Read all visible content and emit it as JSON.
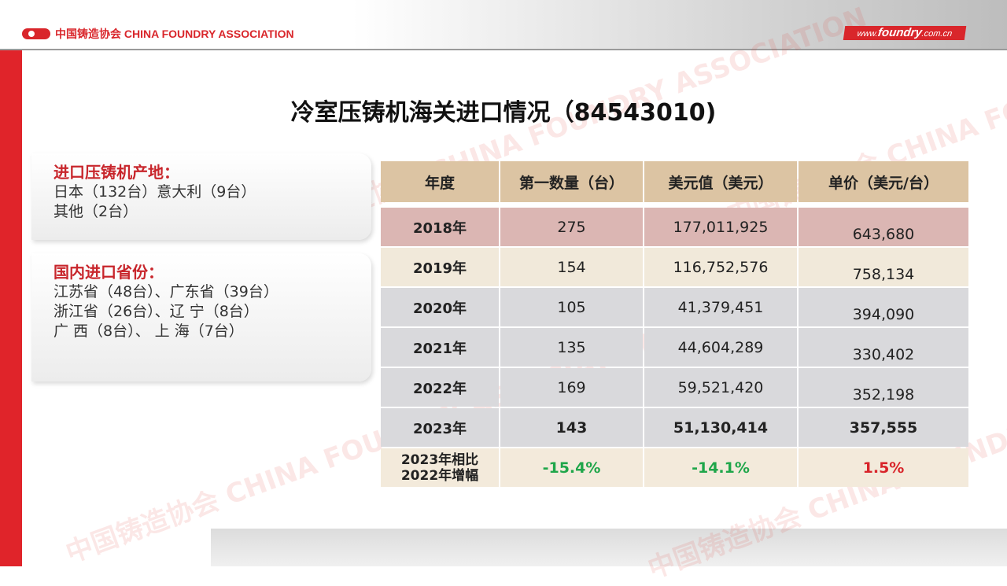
{
  "header": {
    "logo_text": "中国铸造协会 CHINA FOUNDRY ASSOCIATION",
    "site_prefix": "www.",
    "site_main": "foundry",
    "site_suffix": ".com.cn",
    "brand_color": "#d9262b"
  },
  "watermark": "中国铸造协会 CHINA FOUNDRY ASSOCIATION",
  "title": "冷室压铸机海关进口情况（84543010)",
  "origin_box": {
    "heading": "进口压铸机产地：",
    "lines": [
      "日本（132台）意大利（9台）",
      "其他（2台）"
    ]
  },
  "province_box": {
    "heading": "国内进口省份：",
    "lines": [
      "江苏省（48台）、广东省（39台）",
      "浙江省（26台）、辽  宁（8台）",
      "广  西（8台）、  上  海（7台）"
    ]
  },
  "table": {
    "headers": [
      "年度",
      "第一数量（台）",
      "美元值（美元）",
      "单价（美元/台）"
    ],
    "rows": [
      [
        "2018年",
        "275",
        "177,011,925",
        "643,680"
      ],
      [
        "2019年",
        "154",
        "116,752,576",
        "758,134"
      ],
      [
        "2020年",
        "105",
        "41,379,451",
        "394,090"
      ],
      [
        "2021年",
        "135",
        "44,604,289",
        "330,402"
      ],
      [
        "2022年",
        "169",
        "59,521,420",
        "352,198"
      ],
      [
        "2023年",
        "143",
        "51,130,414",
        "357,555"
      ]
    ],
    "change_row": {
      "label_line1": "2023年相比",
      "label_line2": "2022年增幅",
      "values": [
        "-15.4%",
        "-14.1%",
        "1.5%"
      ]
    }
  }
}
